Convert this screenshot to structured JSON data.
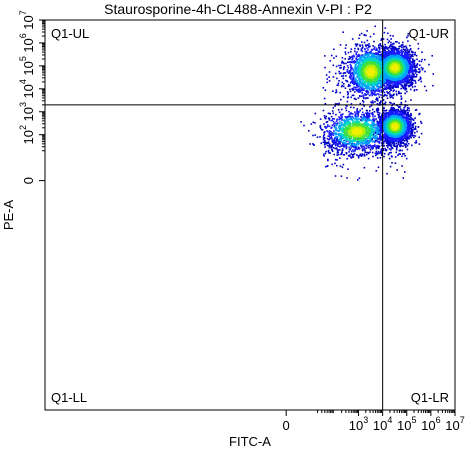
{
  "chart_data": {
    "type": "scatter",
    "title": "Staurosporine-4h-CL488-Annexin V-PI : P2",
    "xlabel": "FITC-A",
    "ylabel": "PE-A",
    "x_scale": "biexponential",
    "y_scale": "biexponential",
    "xlim": [
      -100,
      10000000
    ],
    "ylim": [
      -100,
      10000000
    ],
    "x_ticks": [
      {
        "value": 0,
        "base": "0",
        "exp": ""
      },
      {
        "value": 1000,
        "base": "10",
        "exp": "3"
      },
      {
        "value": 10000,
        "base": "10",
        "exp": "4"
      },
      {
        "value": 100000,
        "base": "10",
        "exp": "5"
      },
      {
        "value": 1000000,
        "base": "10",
        "exp": "6"
      },
      {
        "value": 10000000,
        "base": "10",
        "exp": "7"
      }
    ],
    "y_ticks": [
      {
        "value": 0,
        "base": "0",
        "exp": ""
      },
      {
        "value": 100,
        "base": "10",
        "exp": "2"
      },
      {
        "value": 1000,
        "base": "10",
        "exp": "3"
      },
      {
        "value": 10000,
        "base": "10",
        "exp": "4"
      },
      {
        "value": 100000,
        "base": "10",
        "exp": "5"
      },
      {
        "value": 1000000,
        "base": "10",
        "exp": "6"
      },
      {
        "value": 10000000,
        "base": "10",
        "exp": "7"
      }
    ],
    "gate": {
      "type": "quadrant",
      "x_threshold": 10000,
      "y_threshold": 2000,
      "labels": {
        "ul": "Q1-UL",
        "ur": "Q1-UR",
        "ll": "Q1-LL",
        "lr": "Q1-LR"
      }
    },
    "density_colors": [
      "#0000c8",
      "#1a1aff",
      "#00a0ff",
      "#00d8c0",
      "#40e040",
      "#b0f000",
      "#f0f000"
    ],
    "populations": [
      {
        "quadrant": "UR",
        "center": [
          30000,
          90000
        ],
        "spread_decades": [
          0.35,
          0.35
        ],
        "relative_size": 0.36
      },
      {
        "quadrant": "UL",
        "center": [
          3000,
          60000
        ],
        "spread_decades": [
          0.45,
          0.5
        ],
        "relative_size": 0.2
      },
      {
        "quadrant": "LR",
        "center": [
          30000,
          250
        ],
        "spread_decades": [
          0.3,
          0.3
        ],
        "relative_size": 0.3
      },
      {
        "quadrant": "LL",
        "center": [
          800,
          150
        ],
        "spread_decades": [
          0.6,
          0.4
        ],
        "relative_size": 0.14
      }
    ]
  }
}
